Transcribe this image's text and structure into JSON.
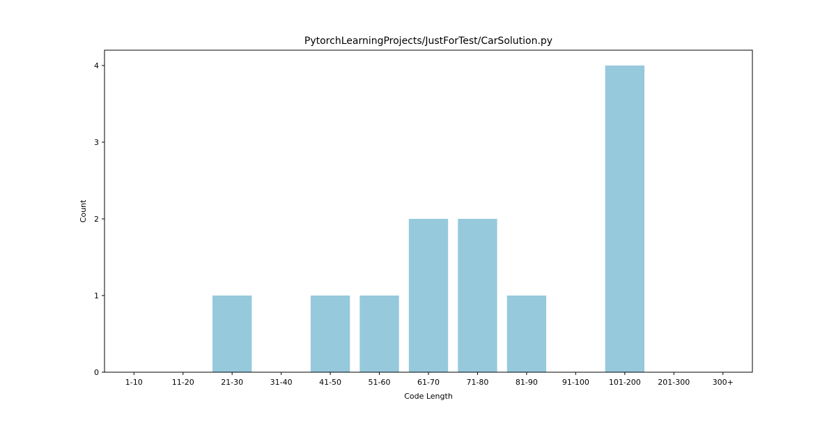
{
  "chart_data": {
    "type": "bar",
    "title": "PytorchLearningProjects/JustForTest/CarSolution.py",
    "xlabel": "Code Length",
    "ylabel": "Count",
    "categories": [
      "1-10",
      "11-20",
      "21-30",
      "31-40",
      "41-50",
      "51-60",
      "61-70",
      "71-80",
      "81-90",
      "91-100",
      "101-200",
      "201-300",
      "300+"
    ],
    "values": [
      0,
      0,
      1,
      0,
      1,
      1,
      2,
      2,
      1,
      0,
      4,
      0,
      0
    ],
    "ylim": [
      0,
      4.2
    ],
    "yticks": [
      0,
      1,
      2,
      3,
      4
    ],
    "grid": false,
    "bar_color": "#96c9dc"
  }
}
